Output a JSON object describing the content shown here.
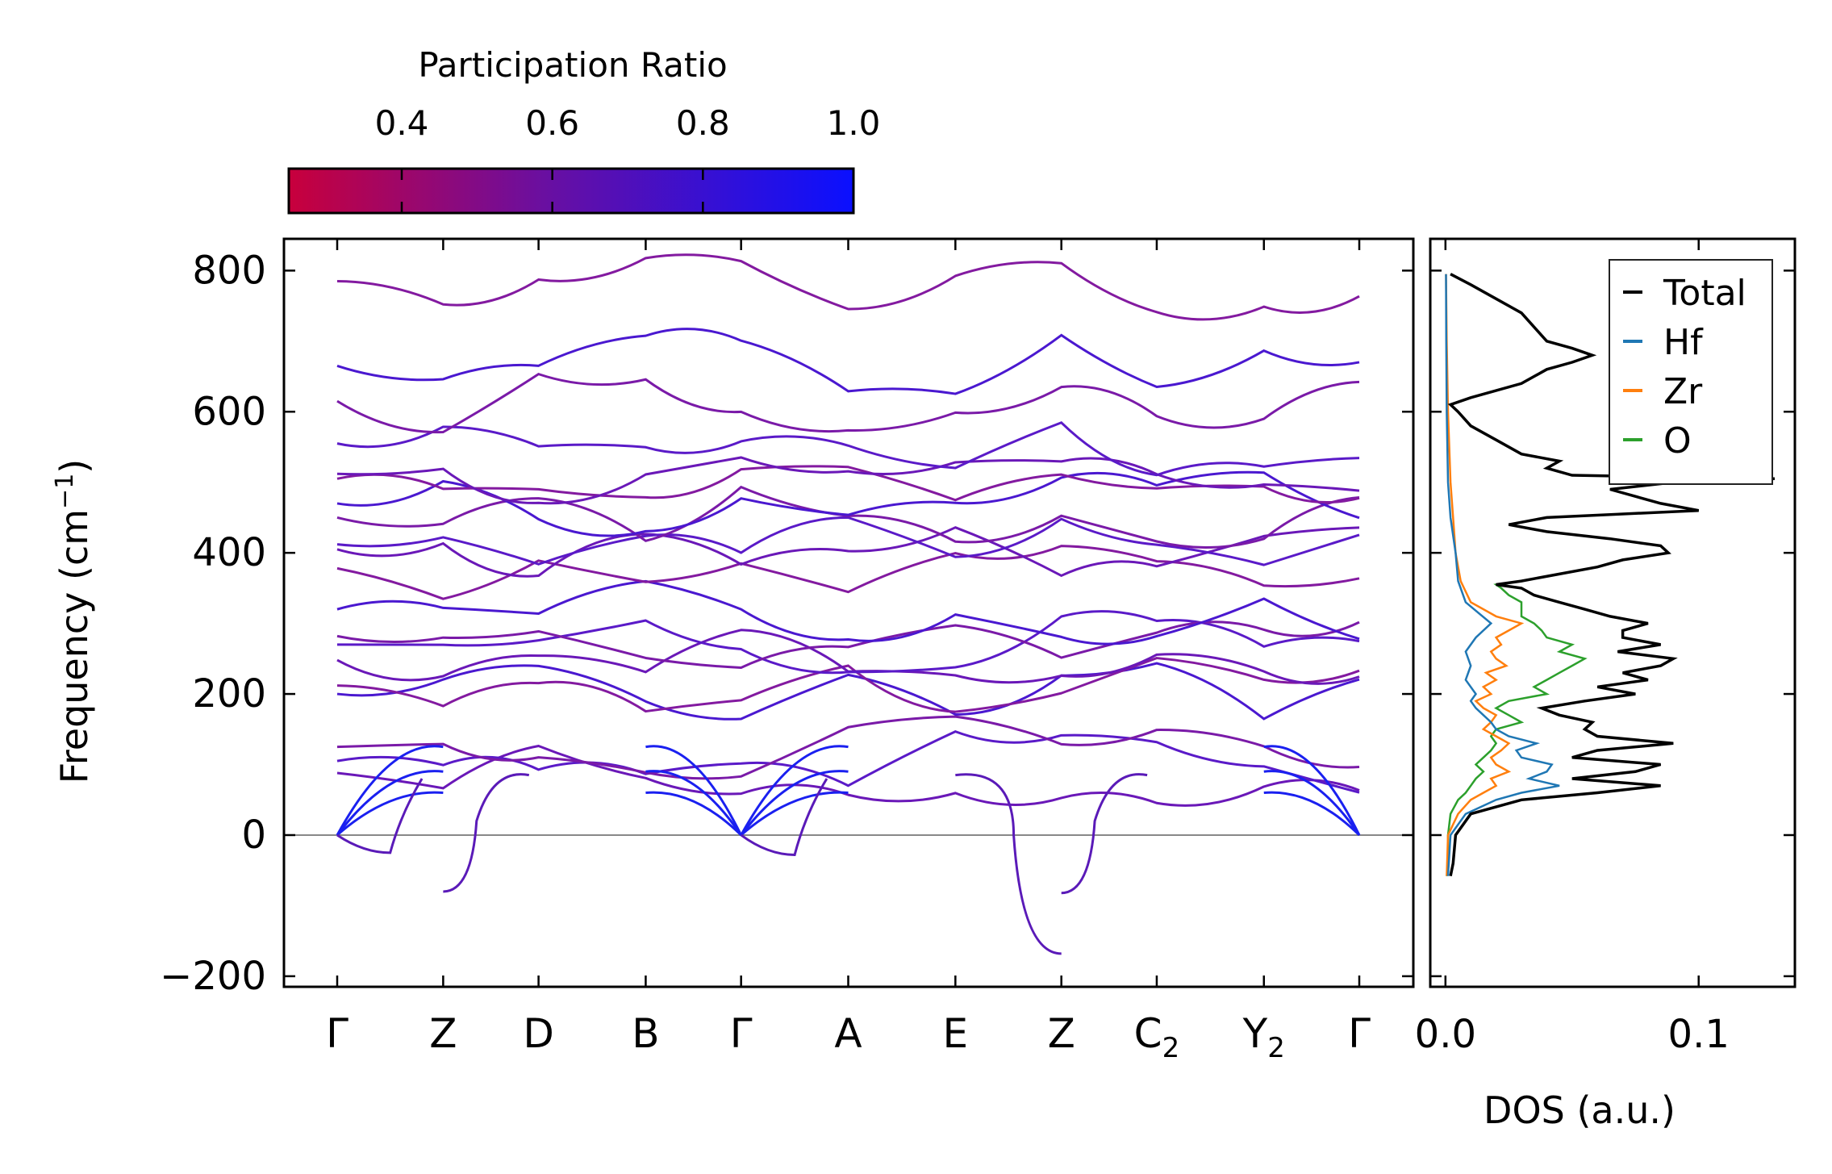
{
  "chart_data": [
    {
      "type": "line",
      "title": "",
      "xlabel": "",
      "ylabel": "Frequency (cm⁻¹)",
      "ylabel_base": "Frequency (cm",
      "ylabel_exp": "−1",
      "ylabel_close": ")",
      "ylim": [
        -215,
        845
      ],
      "yticks": [
        -200,
        0,
        200,
        400,
        600,
        800
      ],
      "ytick_labels": [
        "−200",
        "0",
        "200",
        "400",
        "600",
        "800"
      ],
      "x_high_symmetry": [
        "Γ",
        "Z",
        "D",
        "B",
        "Γ",
        "A",
        "E",
        "Z",
        "C₂",
        "Y₂",
        "Γ"
      ],
      "x_positions": [
        0.0,
        0.09,
        0.171,
        0.262,
        0.343,
        0.434,
        0.525,
        0.615,
        0.696,
        0.787,
        0.868
      ],
      "x_label_main": [
        "Γ",
        "Z",
        "D",
        "B",
        "Γ",
        "A",
        "E",
        "Z",
        "C",
        "Y",
        "Γ"
      ],
      "x_label_sub": [
        "",
        "",
        "",
        "",
        "",
        "",
        "",
        "",
        "2",
        "2",
        ""
      ],
      "colorbar": {
        "label": "Participation Ratio",
        "range": [
          0.25,
          1.0
        ],
        "ticks": [
          0.4,
          0.6,
          0.8,
          1.0
        ],
        "tick_labels": [
          "0.4",
          "0.6",
          "0.8",
          "1.0"
        ],
        "color_low": "#c8003c",
        "color_mid": "#6a0fa0",
        "color_high": "#0a10ff"
      },
      "band_color": "#5a1ab8",
      "acoustic_color": "#1a20f0",
      "optical_bands_at_gamma": [
        88,
        105,
        125,
        200,
        212,
        248,
        270,
        282,
        320,
        378,
        405,
        412,
        450,
        470,
        505,
        512,
        555,
        615,
        665,
        785
      ],
      "imaginary_modes": [
        {
          "segment": "Z-D",
          "min": -80
        },
        {
          "segment": "Γ-A",
          "min": -28
        },
        {
          "segment": "E-Z",
          "min": -168
        },
        {
          "segment": "Z-C₂",
          "min": -82
        },
        {
          "segment": "Γ-Z",
          "min": -25
        }
      ]
    },
    {
      "type": "line",
      "orientation": "horizontal",
      "xlabel": "DOS (a.u.)",
      "ylabel": "",
      "xlim": [
        -0.006,
        0.138
      ],
      "xticks": [
        0.0,
        0.1
      ],
      "xtick_labels": [
        "0.0",
        "0.1"
      ],
      "ylim": [
        -215,
        845
      ],
      "legend_position": "top-right",
      "series": [
        {
          "name": "Total",
          "color": "#000000",
          "freq": [
            -58,
            -40,
            0,
            30,
            50,
            60,
            70,
            80,
            90,
            100,
            110,
            120,
            130,
            140,
            150,
            160,
            170,
            180,
            190,
            200,
            210,
            220,
            230,
            240,
            250,
            260,
            270,
            280,
            290,
            300,
            310,
            320,
            330,
            340,
            350,
            355,
            360,
            370,
            380,
            390,
            400,
            410,
            420,
            430,
            440,
            450,
            460,
            470,
            480,
            490,
            500,
            505,
            510,
            520,
            530,
            540,
            560,
            580,
            600,
            610,
            620,
            640,
            660,
            670,
            680,
            690,
            700,
            720,
            740,
            760,
            780,
            795
          ],
          "values": [
            0.002,
            0.003,
            0.004,
            0.01,
            0.03,
            0.06,
            0.085,
            0.05,
            0.075,
            0.085,
            0.05,
            0.06,
            0.09,
            0.06,
            0.055,
            0.058,
            0.045,
            0.038,
            0.055,
            0.075,
            0.06,
            0.08,
            0.07,
            0.085,
            0.09,
            0.068,
            0.085,
            0.07,
            0.07,
            0.08,
            0.065,
            0.055,
            0.045,
            0.035,
            0.03,
            0.02,
            0.03,
            0.045,
            0.06,
            0.07,
            0.088,
            0.085,
            0.065,
            0.04,
            0.025,
            0.04,
            0.1,
            0.085,
            0.075,
            0.065,
            0.09,
            0.13,
            0.05,
            0.04,
            0.045,
            0.03,
            0.02,
            0.01,
            0.005,
            0.002,
            0.01,
            0.03,
            0.04,
            0.05,
            0.058,
            0.05,
            0.04,
            0.035,
            0.03,
            0.02,
            0.01,
            0.002
          ]
        },
        {
          "name": "Hf",
          "color": "#1f77b4",
          "freq": [
            -58,
            0,
            30,
            50,
            60,
            70,
            80,
            90,
            100,
            110,
            120,
            130,
            140,
            150,
            160,
            170,
            180,
            190,
            200,
            220,
            240,
            260,
            280,
            300,
            330,
            360,
            400,
            450,
            500,
            600,
            700,
            795
          ],
          "values": [
            0.001,
            0.002,
            0.008,
            0.02,
            0.03,
            0.045,
            0.033,
            0.04,
            0.042,
            0.03,
            0.028,
            0.036,
            0.025,
            0.02,
            0.018,
            0.015,
            0.012,
            0.01,
            0.012,
            0.008,
            0.01,
            0.008,
            0.012,
            0.018,
            0.008,
            0.005,
            0.004,
            0.002,
            0.001,
            0.0005,
            0.0003,
            0.0002
          ]
        },
        {
          "name": "Zr",
          "color": "#ff7f0e",
          "freq": [
            -58,
            0,
            30,
            50,
            60,
            70,
            80,
            90,
            100,
            110,
            120,
            130,
            140,
            150,
            160,
            170,
            180,
            190,
            200,
            210,
            220,
            230,
            240,
            250,
            260,
            270,
            280,
            290,
            300,
            310,
            330,
            360,
            400,
            450,
            500,
            600,
            700,
            795
          ],
          "values": [
            0.0005,
            0.001,
            0.005,
            0.01,
            0.015,
            0.02,
            0.018,
            0.025,
            0.02,
            0.018,
            0.022,
            0.025,
            0.02,
            0.015,
            0.018,
            0.02,
            0.015,
            0.012,
            0.018,
            0.015,
            0.02,
            0.016,
            0.024,
            0.02,
            0.018,
            0.022,
            0.02,
            0.025,
            0.03,
            0.02,
            0.01,
            0.006,
            0.004,
            0.003,
            0.002,
            0.001,
            0.0005,
            0.0002
          ]
        },
        {
          "name": "O",
          "color": "#2ca02c",
          "freq": [
            -58,
            -40,
            0,
            30,
            50,
            60,
            70,
            80,
            90,
            100,
            110,
            120,
            130,
            140,
            150,
            160,
            170,
            180,
            190,
            200,
            210,
            220,
            230,
            240,
            250,
            260,
            270,
            280,
            290,
            300,
            310,
            320,
            330,
            340,
            350,
            355,
            360,
            370,
            380,
            390,
            400,
            410,
            420,
            430,
            440,
            450,
            460,
            470,
            480,
            490,
            500,
            505,
            510,
            520,
            530,
            540,
            560,
            580,
            600,
            610,
            620,
            640,
            660,
            670,
            680,
            690,
            700,
            720,
            740,
            760,
            780,
            795
          ],
          "values": [
            0.0005,
            0.001,
            0.001,
            0.002,
            0.005,
            0.008,
            0.01,
            0.012,
            0.015,
            0.012,
            0.015,
            0.018,
            0.02,
            0.018,
            0.02,
            0.03,
            0.025,
            0.02,
            0.025,
            0.04,
            0.035,
            0.04,
            0.045,
            0.05,
            0.055,
            0.045,
            0.05,
            0.04,
            0.038,
            0.035,
            0.03,
            0.03,
            0.03,
            0.025,
            0.022,
            0.02,
            0.03,
            0.045,
            0.06,
            0.07,
            0.088,
            0.085,
            0.065,
            0.04,
            0.025,
            0.04,
            0.1,
            0.085,
            0.075,
            0.065,
            0.09,
            0.13,
            0.05,
            0.04,
            0.045,
            0.03,
            0.02,
            0.01,
            0.005,
            0.002,
            0.01,
            0.03,
            0.04,
            0.05,
            0.058,
            0.05,
            0.04,
            0.035,
            0.03,
            0.02,
            0.01,
            0.002
          ]
        }
      ]
    }
  ]
}
